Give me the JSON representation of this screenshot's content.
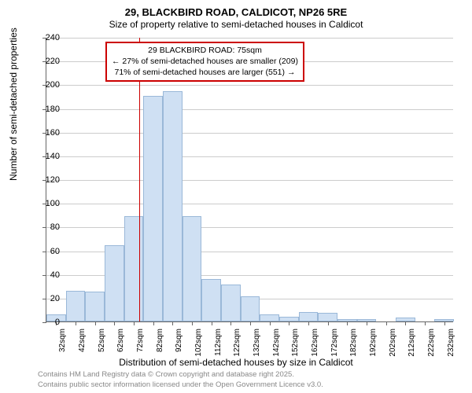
{
  "chart": {
    "type": "histogram",
    "title_main": "29, BLACKBIRD ROAD, CALDICOT, NP26 5RE",
    "title_sub": "Size of property relative to semi-detached houses in Caldicot",
    "x_label": "Distribution of semi-detached houses by size in Caldicot",
    "y_label": "Number of semi-detached properties",
    "ylim": [
      0,
      240
    ],
    "ytick_step": 20,
    "x_start": 27,
    "x_tick_start": 32,
    "x_tick_step": 10,
    "x_tick_count": 21,
    "x_tick_unit": "sqm",
    "bar_width_units": 10,
    "bar_color": "#cfe0f3",
    "bar_border_color": "#9ab8d8",
    "grid_color": "#cccccc",
    "background_color": "#ffffff",
    "axis_color": "#666666",
    "ref_line_x": 75,
    "ref_line_color": "#cc0000",
    "bars": [
      {
        "x": 27,
        "y": 6
      },
      {
        "x": 37,
        "y": 26
      },
      {
        "x": 47,
        "y": 25
      },
      {
        "x": 57,
        "y": 64
      },
      {
        "x": 67,
        "y": 89
      },
      {
        "x": 77,
        "y": 190
      },
      {
        "x": 87,
        "y": 194
      },
      {
        "x": 97,
        "y": 89
      },
      {
        "x": 107,
        "y": 36
      },
      {
        "x": 117,
        "y": 31
      },
      {
        "x": 127,
        "y": 21
      },
      {
        "x": 137,
        "y": 6
      },
      {
        "x": 147,
        "y": 4
      },
      {
        "x": 157,
        "y": 8
      },
      {
        "x": 167,
        "y": 7
      },
      {
        "x": 177,
        "y": 2
      },
      {
        "x": 187,
        "y": 2
      },
      {
        "x": 207,
        "y": 3
      },
      {
        "x": 227,
        "y": 2
      }
    ],
    "annotation": {
      "line1": "29 BLACKBIRD ROAD: 75sqm",
      "line2": "← 27% of semi-detached houses are smaller (209)",
      "line3": "71% of semi-detached houses are larger (551) →"
    },
    "footer_line1": "Contains HM Land Registry data © Crown copyright and database right 2025.",
    "footer_line2": "Contains public sector information licensed under the Open Government Licence v3.0."
  }
}
